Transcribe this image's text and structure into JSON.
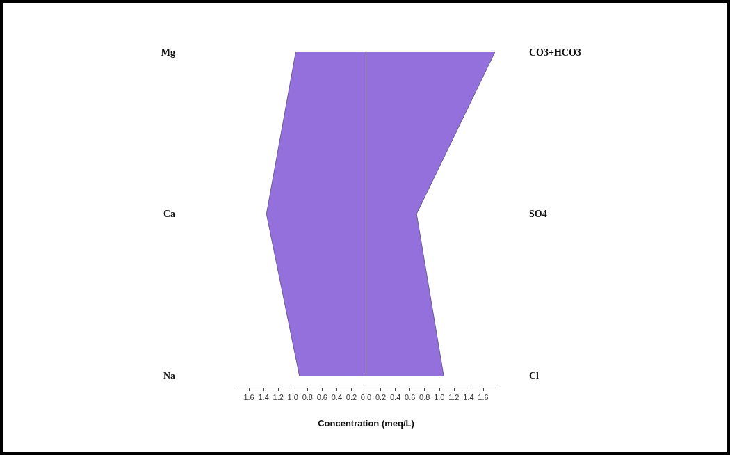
{
  "chart_data": {
    "type": "area",
    "orientation": "horizontal",
    "xlabel": "Concentration (meq/L)",
    "categories": [
      "Mg",
      "Ca",
      "Na"
    ],
    "y2_categories": [
      "CO3+HCO3",
      "SO4",
      "Cl"
    ],
    "series": [
      {
        "color": "#9370db",
        "values": [
          -0.96,
          -1.36,
          -0.91
        ]
      },
      {
        "color": "#9370db",
        "values": [
          1.76,
          0.69,
          1.06
        ]
      }
    ],
    "xlim": [
      -1.8,
      1.8
    ],
    "xticks": [
      {
        "value": -1.6,
        "label": "1.6"
      },
      {
        "value": -1.4,
        "label": "1.4"
      },
      {
        "value": -1.2,
        "label": "1.2"
      },
      {
        "value": -1.0,
        "label": "1.0"
      },
      {
        "value": -0.8,
        "label": "0.8"
      },
      {
        "value": -0.6,
        "label": "0.6"
      },
      {
        "value": -0.4,
        "label": "0.4"
      },
      {
        "value": -0.2,
        "label": "0.2"
      },
      {
        "value": 0,
        "label": "0.0"
      },
      {
        "value": 0.2,
        "label": "0.2"
      },
      {
        "value": 0.4,
        "label": "0.4"
      },
      {
        "value": 0.6,
        "label": "0.6"
      },
      {
        "value": 0.8,
        "label": "0.8"
      },
      {
        "value": 1.0,
        "label": "1.0"
      },
      {
        "value": 1.2,
        "label": "1.2"
      },
      {
        "value": 1.4,
        "label": "1.4"
      },
      {
        "value": 1.6,
        "label": "1.6"
      }
    ],
    "ref_lines": [
      {
        "axis": "x",
        "value": 0,
        "color": "#ddd6f0"
      }
    ]
  }
}
